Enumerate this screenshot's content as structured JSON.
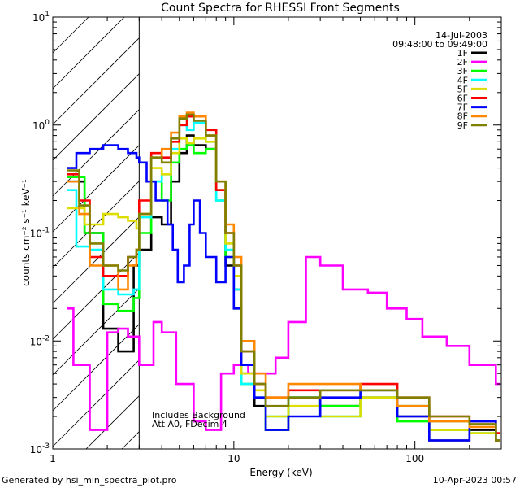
{
  "chart_data": {
    "type": "line",
    "title": "Count Spectra for RHESSI Front Segments",
    "xlabel": "Energy (keV)",
    "ylabel": "counts cm⁻² s⁻¹ keV⁻¹",
    "xscale": "log",
    "yscale": "log",
    "xlim": [
      1,
      300
    ],
    "ylim": [
      0.001,
      10
    ],
    "x_ticks": [
      {
        "value": 1,
        "label": "1"
      },
      {
        "value": 10,
        "label": "10"
      },
      {
        "value": 100,
        "label": "100"
      }
    ],
    "y_ticks": [
      {
        "value": 0.001,
        "mant": "10",
        "exp": "-3"
      },
      {
        "value": 0.01,
        "mant": "10",
        "exp": "-2"
      },
      {
        "value": 0.1,
        "mant": "10",
        "exp": "-1"
      },
      {
        "value": 1,
        "mant": "10",
        "exp": "0"
      },
      {
        "value": 10,
        "mant": "10",
        "exp": "1"
      }
    ],
    "shaded_region": {
      "x_from": 1,
      "x_to": 3,
      "pattern": "hatched"
    },
    "date": "14-Jul-2003",
    "time_range": "09:48:00 to 09:49:00",
    "annotations": [
      "Includes Background",
      "Att A0, FDecim 4"
    ],
    "footer_left": "Generated by hsi_min_spectra_plot.pro",
    "footer_right": "10-Apr-2023 00:57",
    "series": [
      {
        "name": "1F",
        "color": "#000000",
        "points": [
          [
            1.2,
            0.3
          ],
          [
            1.5,
            0.1
          ],
          [
            1.9,
            0.013
          ],
          [
            2.3,
            0.008
          ],
          [
            2.8,
            0.05
          ],
          [
            3.0,
            0.07
          ],
          [
            3.5,
            0.14
          ],
          [
            4.0,
            0.12
          ],
          [
            4.5,
            0.3
          ],
          [
            5.0,
            0.55
          ],
          [
            5.5,
            0.8
          ],
          [
            6.0,
            0.65
          ],
          [
            7.0,
            0.6
          ],
          [
            8.0,
            0.25
          ],
          [
            9.0,
            0.05
          ],
          [
            10.0,
            0.03
          ],
          [
            11.0,
            0.005
          ],
          [
            13.0,
            0.0025
          ],
          [
            15.0,
            0.0015
          ],
          [
            20.0,
            0.003
          ],
          [
            30.0,
            0.0025
          ],
          [
            50.0,
            0.003
          ],
          [
            80.0,
            0.002
          ],
          [
            120.0,
            0.0012
          ],
          [
            200.0,
            0.0015
          ],
          [
            280.0,
            0.0012
          ]
        ]
      },
      {
        "name": "2F",
        "color": "#ff00ff",
        "points": [
          [
            1.2,
            0.02
          ],
          [
            1.3,
            0.006
          ],
          [
            1.6,
            0.0015
          ],
          [
            2.0,
            0.012
          ],
          [
            2.3,
            0.013
          ],
          [
            2.6,
            0.011
          ],
          [
            3.0,
            0.006
          ],
          [
            3.6,
            0.015
          ],
          [
            4.0,
            0.012
          ],
          [
            4.8,
            0.004
          ],
          [
            6.0,
            0.0018
          ],
          [
            7.0,
            0.0015
          ],
          [
            8.5,
            0.005
          ],
          [
            10.0,
            0.006
          ],
          [
            12.0,
            0.005
          ],
          [
            14.0,
            0.005
          ],
          [
            17.0,
            0.007
          ],
          [
            20.0,
            0.015
          ],
          [
            25.0,
            0.06
          ],
          [
            30.0,
            0.05
          ],
          [
            40.0,
            0.03
          ],
          [
            55.0,
            0.028
          ],
          [
            70.0,
            0.02
          ],
          [
            90.0,
            0.016
          ],
          [
            110.0,
            0.011
          ],
          [
            150.0,
            0.009
          ],
          [
            200.0,
            0.006
          ],
          [
            280.0,
            0.004
          ]
        ]
      },
      {
        "name": "3F",
        "color": "#00ff00",
        "points": [
          [
            1.2,
            0.33
          ],
          [
            1.5,
            0.1
          ],
          [
            1.9,
            0.022
          ],
          [
            2.3,
            0.019
          ],
          [
            2.8,
            0.025
          ],
          [
            3.0,
            0.1
          ],
          [
            3.5,
            0.3
          ],
          [
            4.0,
            0.2
          ],
          [
            4.5,
            0.45
          ],
          [
            5.0,
            0.6
          ],
          [
            5.5,
            0.65
          ],
          [
            6.0,
            0.55
          ],
          [
            7.0,
            0.6
          ],
          [
            8.0,
            0.2
          ],
          [
            9.0,
            0.06
          ],
          [
            10.0,
            0.02
          ],
          [
            11.0,
            0.004
          ],
          [
            13.0,
            0.003
          ],
          [
            15.0,
            0.0015
          ],
          [
            20.0,
            0.003
          ],
          [
            30.0,
            0.0025
          ],
          [
            50.0,
            0.003
          ],
          [
            80.0,
            0.0018
          ],
          [
            120.0,
            0.0015
          ],
          [
            200.0,
            0.0018
          ],
          [
            280.0,
            0.0012
          ]
        ]
      },
      {
        "name": "4F",
        "color": "#00ffff",
        "points": [
          [
            1.2,
            0.25
          ],
          [
            1.35,
            0.075
          ],
          [
            1.6,
            0.07
          ],
          [
            1.9,
            0.03
          ],
          [
            2.3,
            0.027
          ],
          [
            2.8,
            0.03
          ],
          [
            3.0,
            0.14
          ],
          [
            3.5,
            0.3
          ],
          [
            4.0,
            0.35
          ],
          [
            4.5,
            0.6
          ],
          [
            5.0,
            1.0
          ],
          [
            5.5,
            0.9
          ],
          [
            6.0,
            1.05
          ],
          [
            7.0,
            0.7
          ],
          [
            8.0,
            0.2
          ],
          [
            9.0,
            0.07
          ],
          [
            10.0,
            0.03
          ],
          [
            11.0,
            0.004
          ],
          [
            13.0,
            0.003
          ],
          [
            15.0,
            0.002
          ],
          [
            20.0,
            0.003
          ],
          [
            30.0,
            0.002
          ],
          [
            50.0,
            0.0035
          ],
          [
            80.0,
            0.0025
          ],
          [
            120.0,
            0.0018
          ],
          [
            200.0,
            0.0014
          ],
          [
            280.0,
            0.0012
          ]
        ]
      },
      {
        "name": "5F",
        "color": "#dddd00",
        "points": [
          [
            1.2,
            0.17
          ],
          [
            1.5,
            0.12
          ],
          [
            1.9,
            0.15
          ],
          [
            2.3,
            0.14
          ],
          [
            2.6,
            0.13
          ],
          [
            2.9,
            0.11
          ],
          [
            3.0,
            0.15
          ],
          [
            3.5,
            0.4
          ],
          [
            4.0,
            0.35
          ],
          [
            4.5,
            0.55
          ],
          [
            5.0,
            0.75
          ],
          [
            5.5,
            0.68
          ],
          [
            6.0,
            0.75
          ],
          [
            7.0,
            0.7
          ],
          [
            8.0,
            0.25
          ],
          [
            9.0,
            0.08
          ],
          [
            10.0,
            0.04
          ],
          [
            11.0,
            0.005
          ],
          [
            13.0,
            0.0035
          ],
          [
            15.0,
            0.002
          ],
          [
            20.0,
            0.0025
          ],
          [
            30.0,
            0.002
          ],
          [
            50.0,
            0.003
          ],
          [
            80.0,
            0.0025
          ],
          [
            120.0,
            0.0015
          ],
          [
            200.0,
            0.0014
          ],
          [
            280.0,
            0.0012
          ]
        ]
      },
      {
        "name": "6F",
        "color": "#ff0000",
        "points": [
          [
            1.2,
            0.35
          ],
          [
            1.4,
            0.2
          ],
          [
            1.6,
            0.06
          ],
          [
            1.9,
            0.04
          ],
          [
            2.3,
            0.04
          ],
          [
            2.6,
            0.06
          ],
          [
            2.9,
            0.07
          ],
          [
            3.0,
            0.2
          ],
          [
            3.5,
            0.55
          ],
          [
            4.0,
            0.5
          ],
          [
            4.5,
            0.7
          ],
          [
            5.0,
            1.0
          ],
          [
            5.5,
            1.2
          ],
          [
            6.0,
            1.1
          ],
          [
            7.0,
            0.9
          ],
          [
            8.0,
            0.25
          ],
          [
            9.0,
            0.1
          ],
          [
            10.0,
            0.05
          ],
          [
            11.0,
            0.008
          ],
          [
            13.0,
            0.004
          ],
          [
            15.0,
            0.003
          ],
          [
            20.0,
            0.0035
          ],
          [
            30.0,
            0.0035
          ],
          [
            50.0,
            0.004
          ],
          [
            80.0,
            0.003
          ],
          [
            120.0,
            0.002
          ],
          [
            200.0,
            0.0018
          ],
          [
            280.0,
            0.0014
          ]
        ]
      },
      {
        "name": "7F",
        "color": "#0000ff",
        "points": [
          [
            1.2,
            0.4
          ],
          [
            1.35,
            0.55
          ],
          [
            1.6,
            0.6
          ],
          [
            1.9,
            0.65
          ],
          [
            2.3,
            0.6
          ],
          [
            2.6,
            0.55
          ],
          [
            2.9,
            0.5
          ],
          [
            3.0,
            0.45
          ],
          [
            3.3,
            0.3
          ],
          [
            3.7,
            0.2
          ],
          [
            4.0,
            0.2
          ],
          [
            4.3,
            0.12
          ],
          [
            4.6,
            0.07
          ],
          [
            4.9,
            0.035
          ],
          [
            5.3,
            0.05
          ],
          [
            5.7,
            0.12
          ],
          [
            6.0,
            0.2
          ],
          [
            6.5,
            0.1
          ],
          [
            7.0,
            0.06
          ],
          [
            8.0,
            0.035
          ],
          [
            9.0,
            0.06
          ],
          [
            10.0,
            0.02
          ],
          [
            11.0,
            0.006
          ],
          [
            13.0,
            0.003
          ],
          [
            15.0,
            0.0015
          ],
          [
            20.0,
            0.002
          ],
          [
            30.0,
            0.003
          ],
          [
            50.0,
            0.0035
          ],
          [
            80.0,
            0.002
          ],
          [
            120.0,
            0.0012
          ],
          [
            200.0,
            0.0018
          ],
          [
            280.0,
            0.0012
          ]
        ]
      },
      {
        "name": "8F",
        "color": "#ff8800",
        "points": [
          [
            1.2,
            0.3
          ],
          [
            1.4,
            0.15
          ],
          [
            1.6,
            0.05
          ],
          [
            1.9,
            0.05
          ],
          [
            2.3,
            0.03
          ],
          [
            2.6,
            0.05
          ],
          [
            2.9,
            0.07
          ],
          [
            3.0,
            0.15
          ],
          [
            3.5,
            0.5
          ],
          [
            4.0,
            0.6
          ],
          [
            4.5,
            0.85
          ],
          [
            5.0,
            1.2
          ],
          [
            5.5,
            1.3
          ],
          [
            6.0,
            1.2
          ],
          [
            7.0,
            0.8
          ],
          [
            8.0,
            0.3
          ],
          [
            9.0,
            0.12
          ],
          [
            10.0,
            0.06
          ],
          [
            11.0,
            0.01
          ],
          [
            13.0,
            0.005
          ],
          [
            15.0,
            0.003
          ],
          [
            20.0,
            0.004
          ],
          [
            30.0,
            0.004
          ],
          [
            50.0,
            0.0035
          ],
          [
            80.0,
            0.0025
          ],
          [
            120.0,
            0.0018
          ],
          [
            200.0,
            0.0016
          ],
          [
            280.0,
            0.0012
          ]
        ]
      },
      {
        "name": "9F",
        "color": "#808000",
        "points": [
          [
            1.2,
            0.38
          ],
          [
            1.4,
            0.18
          ],
          [
            1.6,
            0.08
          ],
          [
            1.9,
            0.05
          ],
          [
            2.3,
            0.045
          ],
          [
            2.6,
            0.06
          ],
          [
            2.9,
            0.07
          ],
          [
            3.0,
            0.15
          ],
          [
            3.5,
            0.5
          ],
          [
            4.0,
            0.45
          ],
          [
            4.5,
            0.75
          ],
          [
            5.0,
            1.15
          ],
          [
            5.5,
            1.25
          ],
          [
            6.0,
            1.1
          ],
          [
            7.0,
            0.8
          ],
          [
            8.0,
            0.3
          ],
          [
            9.0,
            0.1
          ],
          [
            10.0,
            0.05
          ],
          [
            11.0,
            0.008
          ],
          [
            13.0,
            0.004
          ],
          [
            15.0,
            0.0025
          ],
          [
            20.0,
            0.003
          ],
          [
            30.0,
            0.0035
          ],
          [
            50.0,
            0.0035
          ],
          [
            80.0,
            0.003
          ],
          [
            120.0,
            0.002
          ],
          [
            200.0,
            0.0017
          ],
          [
            280.0,
            0.0012
          ]
        ]
      }
    ]
  }
}
